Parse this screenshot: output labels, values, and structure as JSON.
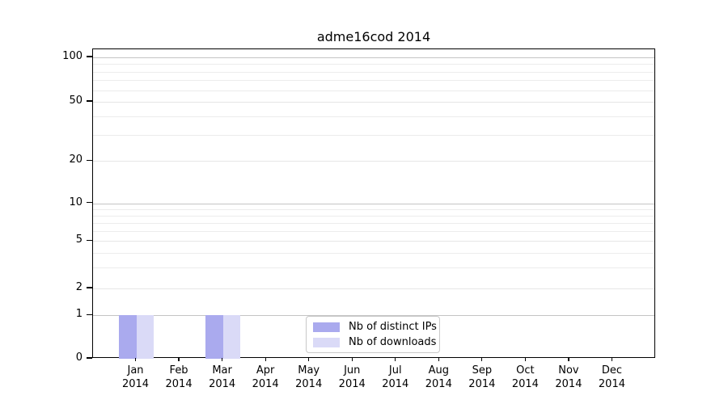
{
  "chart_data": {
    "type": "bar",
    "title": "adme16cod 2014",
    "xlabel": "",
    "ylabel": "",
    "year_label": "2014",
    "categories": [
      "Jan",
      "Feb",
      "Mar",
      "Apr",
      "May",
      "Jun",
      "Jul",
      "Aug",
      "Sep",
      "Oct",
      "Nov",
      "Dec"
    ],
    "series": [
      {
        "name": "Nb of distinct IPs",
        "color": "#aaaaee",
        "values": [
          1,
          0,
          1,
          0,
          0,
          0,
          0,
          0,
          0,
          0,
          0,
          0
        ]
      },
      {
        "name": "Nb of downloads",
        "color": "#dadaf7",
        "values": [
          1,
          0,
          1,
          0,
          0,
          0,
          0,
          0,
          0,
          0,
          0,
          0
        ]
      }
    ],
    "yticks": [
      0,
      1,
      2,
      5,
      10,
      20,
      50,
      100
    ],
    "y_minor_ticks": [
      3,
      4,
      6,
      7,
      8,
      9,
      30,
      40,
      60,
      70,
      80,
      90
    ],
    "y_decade_ticks": [
      1,
      10,
      100
    ],
    "ylim": [
      0,
      120
    ],
    "yscale": "log-with-zero-baseline",
    "grid": true,
    "legend": {
      "position": "lower center"
    }
  }
}
